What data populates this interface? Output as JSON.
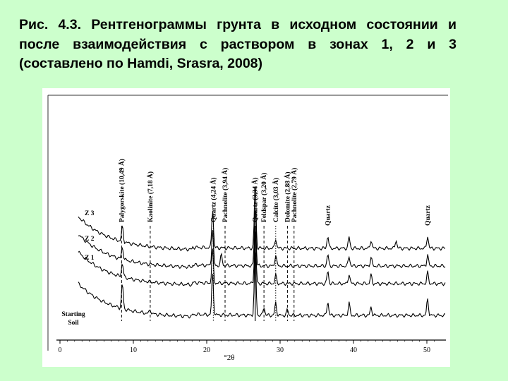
{
  "slide": {
    "title": "Рис. 4.3. Рентгенограммы грунта в исходном состоянии и после взаимодействия с раствором в зонах 1, 2 и 3 (составлено по Hamdi, Srasra, 2008)"
  },
  "chart_data": {
    "type": "line",
    "xlabel": "°2θ",
    "ylabel": "",
    "xlim": [
      0,
      50
    ],
    "x_ticks": [
      0,
      10,
      20,
      30,
      40,
      50
    ],
    "grid": false,
    "series": [
      {
        "name": "Z 3",
        "peaks": [
          [
            8.5,
            0.55
          ],
          [
            20.8,
            1.4
          ],
          [
            26.6,
            2.4
          ],
          [
            29.4,
            0.35
          ],
          [
            36.5,
            0.45
          ],
          [
            39.4,
            0.4
          ],
          [
            42.4,
            0.3
          ],
          [
            45.8,
            0.3
          ],
          [
            50.1,
            0.45
          ]
        ]
      },
      {
        "name": "Z 2",
        "peaks": [
          [
            8.5,
            0.45
          ],
          [
            20.8,
            1.3
          ],
          [
            22.0,
            0.4
          ],
          [
            26.6,
            2.2
          ],
          [
            29.4,
            0.4
          ],
          [
            36.5,
            0.4
          ],
          [
            39.4,
            0.35
          ],
          [
            42.4,
            0.3
          ],
          [
            50.1,
            0.4
          ]
        ]
      },
      {
        "name": "Z 1",
        "peaks": [
          [
            8.5,
            0.5
          ],
          [
            20.8,
            1.2
          ],
          [
            26.6,
            2.1
          ],
          [
            29.4,
            0.3
          ],
          [
            36.5,
            0.45
          ],
          [
            39.4,
            0.35
          ],
          [
            42.4,
            0.3
          ],
          [
            50.1,
            0.4
          ]
        ]
      },
      {
        "name": "Starting Soil",
        "peaks": [
          [
            8.5,
            0.9
          ],
          [
            12.3,
            0.15
          ],
          [
            20.8,
            1.5
          ],
          [
            26.6,
            2.5
          ],
          [
            27.8,
            0.3
          ],
          [
            29.4,
            0.45
          ],
          [
            31.0,
            0.2
          ],
          [
            36.5,
            0.5
          ],
          [
            39.4,
            0.45
          ],
          [
            42.4,
            0.3
          ],
          [
            50.1,
            0.6
          ]
        ]
      }
    ],
    "annotations": [
      {
        "label": "Palygorskite (10,49 Å)",
        "x": 8.4,
        "line": "dashed"
      },
      {
        "label": "Kaolinite (7,18 Å)",
        "x": 12.3,
        "line": "dashed"
      },
      {
        "label": "Quartz (4,24 Å)",
        "x": 20.9,
        "line": "dotted"
      },
      {
        "label": "Pachnolite (3,94 Å)",
        "x": 22.5,
        "line": "dashed"
      },
      {
        "label": "Quartz (3,34 Å)",
        "x": 26.6,
        "line": "solid"
      },
      {
        "label": "Feldspar (3,20 Å)",
        "x": 27.8,
        "line": "dashed"
      },
      {
        "label": "Calcite (3,03 Å)",
        "x": 29.4,
        "line": "dotted"
      },
      {
        "label": "Dolomite (2,88 Å)",
        "x": 31.0,
        "line": "dashed"
      },
      {
        "label": "Pachnolite (2,79 Å)",
        "x": 31.9,
        "line": "dashed"
      },
      {
        "label": "Quartz",
        "x": 36.5,
        "line": "none"
      },
      {
        "label": "Quartz",
        "x": 50.1,
        "line": "none"
      }
    ]
  }
}
